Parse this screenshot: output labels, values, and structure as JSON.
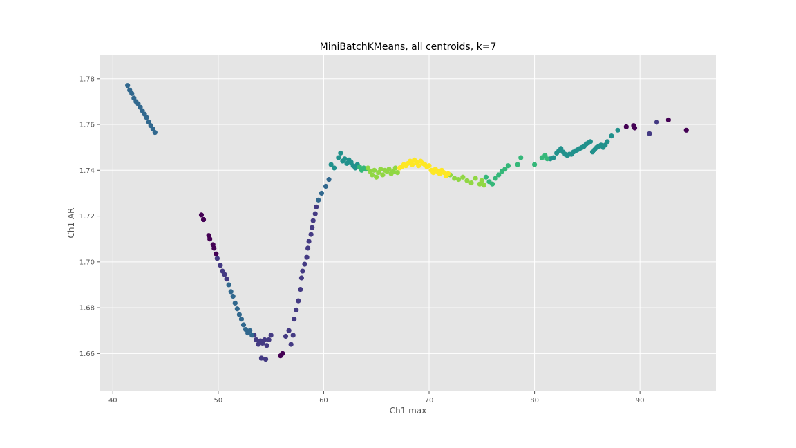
{
  "chart_data": {
    "type": "scatter",
    "title": "MiniBatchKMeans, all centroids, k=7",
    "xlabel": "Ch1 max",
    "ylabel": "Ch1 AR",
    "xlim": [
      38.8,
      97.2
    ],
    "ylim": [
      1.6435,
      1.7905
    ],
    "xticks": [
      40,
      50,
      60,
      70,
      80,
      90
    ],
    "yticks": [
      1.66,
      1.68,
      1.7,
      1.72,
      1.74,
      1.76,
      1.78
    ],
    "ytick_labels": [
      "1.66",
      "1.68",
      "1.70",
      "1.72",
      "1.74",
      "1.76",
      "1.78"
    ],
    "grid": true,
    "legend": "none",
    "colormap": "viridis",
    "cluster_colors": {
      "0": "#440154",
      "1": "#443a83",
      "2": "#31688e",
      "3": "#21918c",
      "4": "#35b779",
      "5": "#90d743",
      "6": "#fde725"
    },
    "series": [
      {
        "cluster": 0,
        "x": [
          48.4,
          48.6,
          49.1,
          49.2,
          49.5,
          49.6,
          49.8,
          55.9,
          56.1,
          88.7,
          89.4,
          89.5,
          92.7,
          94.4
        ],
        "y": [
          1.7205,
          1.7185,
          1.7115,
          1.71,
          1.7075,
          1.706,
          1.7035,
          1.659,
          1.66,
          1.759,
          1.7595,
          1.7585,
          1.762,
          1.7575
        ]
      },
      {
        "cluster": 1,
        "x": [
          49.9,
          50.2,
          50.4,
          50.6,
          50.8,
          53.4,
          53.6,
          53.8,
          54.0,
          54.2,
          54.4,
          54.6,
          54.8,
          55.0,
          54.1,
          54.5,
          56.4,
          56.7,
          56.9,
          57.1,
          57.2,
          57.4,
          57.6,
          57.8,
          57.9,
          58.0,
          58.2,
          58.4,
          58.5,
          58.6,
          58.8,
          58.9,
          59.0,
          59.2,
          59.3,
          90.9,
          91.6
        ],
        "y": [
          1.7015,
          1.6985,
          1.696,
          1.6945,
          1.6925,
          1.668,
          1.666,
          1.664,
          1.6655,
          1.6645,
          1.666,
          1.6635,
          1.666,
          1.668,
          1.658,
          1.6575,
          1.6675,
          1.67,
          1.664,
          1.668,
          1.675,
          1.679,
          1.683,
          1.688,
          1.693,
          1.696,
          1.699,
          1.702,
          1.706,
          1.709,
          1.712,
          1.715,
          1.718,
          1.721,
          1.724,
          1.756,
          1.761
        ]
      },
      {
        "cluster": 2,
        "x": [
          41.4,
          41.6,
          41.8,
          42.0,
          42.2,
          42.4,
          42.6,
          42.8,
          43.0,
          43.2,
          43.4,
          43.6,
          43.8,
          44.0,
          51.0,
          51.2,
          51.4,
          51.6,
          51.8,
          52.0,
          52.2,
          52.4,
          52.6,
          52.8,
          53.0,
          53.2,
          59.5,
          59.8,
          60.2,
          60.5
        ],
        "y": [
          1.777,
          1.775,
          1.7735,
          1.7715,
          1.77,
          1.769,
          1.7675,
          1.766,
          1.7645,
          1.763,
          1.761,
          1.7595,
          1.758,
          1.7565,
          1.69,
          1.687,
          1.685,
          1.682,
          1.6795,
          1.677,
          1.675,
          1.6725,
          1.6705,
          1.669,
          1.67,
          1.668,
          1.727,
          1.73,
          1.733,
          1.736
        ]
      },
      {
        "cluster": 3,
        "x": [
          60.7,
          61.0,
          61.4,
          61.6,
          61.8,
          62.0,
          62.2,
          62.4,
          62.6,
          62.8,
          63.0,
          63.2,
          81.5,
          81.8,
          82.1,
          82.3,
          82.5,
          82.7,
          82.9,
          83.1,
          83.3,
          83.5,
          83.7,
          83.9,
          84.1,
          84.3,
          84.5,
          84.7,
          84.9,
          85.1,
          85.3,
          85.5,
          85.7,
          85.9,
          86.1,
          86.3,
          86.5,
          86.7,
          86.9,
          87.3,
          87.9
        ],
        "y": [
          1.7425,
          1.741,
          1.7455,
          1.7475,
          1.744,
          1.745,
          1.743,
          1.7445,
          1.7435,
          1.742,
          1.741,
          1.7425,
          1.745,
          1.7455,
          1.7475,
          1.7485,
          1.7495,
          1.748,
          1.747,
          1.7465,
          1.747,
          1.747,
          1.748,
          1.7485,
          1.749,
          1.7495,
          1.75,
          1.7505,
          1.7515,
          1.752,
          1.7525,
          1.748,
          1.749,
          1.75,
          1.7505,
          1.751,
          1.75,
          1.751,
          1.7525,
          1.755,
          1.7575
        ]
      },
      {
        "cluster": 4,
        "x": [
          63.4,
          63.6,
          63.8,
          64.0,
          75.4,
          75.7,
          76.0,
          76.3,
          76.6,
          76.9,
          77.2,
          77.5,
          78.4,
          78.7,
          80.0,
          80.7,
          81.0,
          81.2
        ],
        "y": [
          1.7415,
          1.74,
          1.741,
          1.7405,
          1.737,
          1.735,
          1.734,
          1.7365,
          1.738,
          1.7395,
          1.7405,
          1.742,
          1.7425,
          1.7455,
          1.7425,
          1.7455,
          1.7465,
          1.745
        ]
      },
      {
        "cluster": 5,
        "x": [
          64.2,
          64.4,
          64.6,
          64.8,
          65.0,
          65.2,
          65.4,
          65.6,
          65.8,
          66.0,
          66.2,
          66.4,
          66.6,
          66.8,
          67.0,
          72.0,
          72.4,
          72.8,
          73.2,
          73.6,
          74.0,
          74.4,
          74.8,
          75.0,
          75.2
        ],
        "y": [
          1.741,
          1.7395,
          1.738,
          1.74,
          1.737,
          1.739,
          1.7405,
          1.738,
          1.74,
          1.7395,
          1.7405,
          1.7385,
          1.7395,
          1.741,
          1.739,
          1.738,
          1.7365,
          1.736,
          1.737,
          1.7355,
          1.7345,
          1.7365,
          1.734,
          1.7355,
          1.7335
        ]
      },
      {
        "cluster": 6,
        "x": [
          67.2,
          67.4,
          67.6,
          67.8,
          68.0,
          68.2,
          68.4,
          68.6,
          68.8,
          69.0,
          69.2,
          69.4,
          69.6,
          69.8,
          70.0,
          70.2,
          70.4,
          70.6,
          70.8,
          71.0,
          71.2,
          71.4,
          71.6,
          71.8
        ],
        "y": [
          1.741,
          1.7415,
          1.7425,
          1.742,
          1.743,
          1.744,
          1.7425,
          1.7445,
          1.7435,
          1.742,
          1.744,
          1.743,
          1.7425,
          1.7415,
          1.742,
          1.74,
          1.739,
          1.7405,
          1.7395,
          1.7385,
          1.74,
          1.739,
          1.7375,
          1.7385
        ]
      }
    ]
  }
}
